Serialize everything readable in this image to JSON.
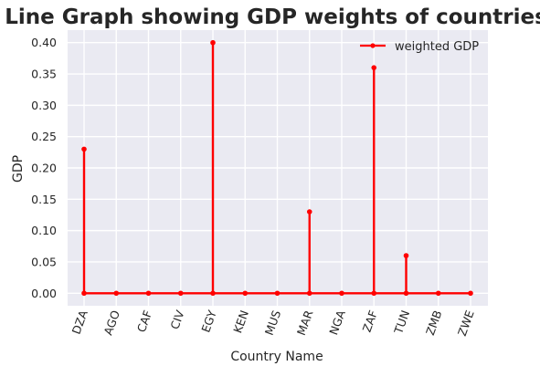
{
  "chart_data": {
    "type": "line",
    "title": "Line Graph showing GDP weights of countries",
    "xlabel": "Country Name",
    "ylabel": "GDP",
    "categories": [
      "DZA",
      "AGO",
      "CAF",
      "CIV",
      "EGY",
      "KEN",
      "MUS",
      "MAR",
      "NGA",
      "ZAF",
      "TUN",
      "ZMB",
      "ZWE"
    ],
    "series": [
      {
        "name": "weighted GDP",
        "color": "#ff0000",
        "marker": "circle",
        "values": [
          0.23,
          0.0,
          0.0,
          0.0,
          0.4,
          0.0,
          0.0,
          0.13,
          0.0,
          0.36,
          0.06,
          0.0,
          0.0
        ]
      }
    ],
    "yticks": [
      0.0,
      0.05,
      0.1,
      0.15,
      0.2,
      0.25,
      0.3,
      0.35,
      0.4
    ],
    "ytick_labels": [
      "0.00",
      "0.05",
      "0.10",
      "0.15",
      "0.20",
      "0.25",
      "0.30",
      "0.35",
      "0.40"
    ],
    "ylim": [
      -0.02,
      0.42
    ],
    "grid": true,
    "legend_position": "top-right",
    "background_color": "#eaeaf2",
    "grid_color": "#ffffff",
    "xtick_rotation": "70 degrees"
  }
}
